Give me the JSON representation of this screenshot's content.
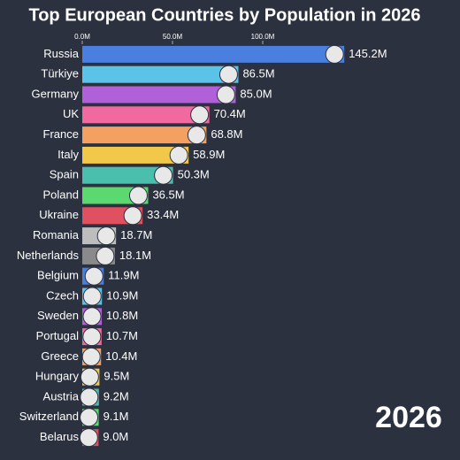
{
  "chart_data": {
    "type": "bar",
    "orientation": "horizontal",
    "title": "Top European Countries by Population in 2026",
    "year_label": "2026",
    "categories": [
      "Russia",
      "Türkiye",
      "Germany",
      "UK",
      "France",
      "Italy",
      "Spain",
      "Poland",
      "Ukraine",
      "Romania",
      "Netherlands",
      "Belgium",
      "Czech",
      "Sweden",
      "Portugal",
      "Greece",
      "Hungary",
      "Austria",
      "Switzerland",
      "Belarus"
    ],
    "values": [
      145.2,
      86.5,
      85.0,
      70.4,
      68.8,
      58.9,
      50.3,
      36.5,
      33.4,
      18.7,
      18.1,
      11.9,
      10.9,
      10.8,
      10.7,
      10.4,
      9.5,
      9.2,
      9.1,
      9.0
    ],
    "value_labels": [
      "145.2M",
      "86.5M",
      "85.0M",
      "70.4M",
      "68.8M",
      "58.9M",
      "50.3M",
      "36.5M",
      "33.4M",
      "18.7M",
      "18.1M",
      "11.9M",
      "10.9M",
      "10.8M",
      "10.7M",
      "10.4M",
      "9.5M",
      "9.2M",
      "9.1M",
      "9.0M"
    ],
    "colors": [
      "#4a7fe0",
      "#5bc3e8",
      "#b060d8",
      "#f06aa0",
      "#f4a060",
      "#f2c84a",
      "#4bbfae",
      "#5cd870",
      "#e05060",
      "#bdbdbd",
      "#8a8a8a",
      "#4a7fe0",
      "#5bc3e8",
      "#b060d8",
      "#f06aa0",
      "#f4a060",
      "#f2c84a",
      "#4bbfae",
      "#5cd870",
      "#e05060"
    ],
    "xlim": [
      0,
      200
    ],
    "xticks": [
      {
        "value": 0,
        "label": "0.0M"
      },
      {
        "value": 50,
        "label": "50.0M"
      },
      {
        "value": 100,
        "label": "100.0M"
      }
    ]
  }
}
